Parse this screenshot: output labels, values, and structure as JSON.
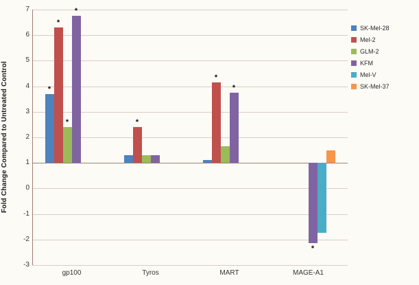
{
  "chart_data": {
    "type": "bar",
    "title": "",
    "xlabel": "",
    "ylabel": "Fold Change Compared to Untreated Control",
    "ylim": [
      -3,
      7
    ],
    "yticks": [
      7,
      6,
      5,
      4,
      3,
      2,
      1,
      0,
      -1,
      -2,
      -3
    ],
    "baseline": 1,
    "grid": true,
    "legend_position": "right",
    "star_symbol": "*",
    "categories": [
      "gp100",
      "Tyros",
      "MART",
      "MAGE-A1"
    ],
    "series": [
      {
        "name": "SK-Mel-28",
        "color": "#4F81BD",
        "values": [
          3.7,
          1.3,
          1.1,
          null
        ],
        "significant": [
          true,
          false,
          false,
          false
        ]
      },
      {
        "name": "Mel-2",
        "color": "#C0504D",
        "values": [
          6.3,
          2.4,
          4.15,
          null
        ],
        "significant": [
          true,
          true,
          true,
          false
        ]
      },
      {
        "name": "GLM-2",
        "color": "#9BBB59",
        "values": [
          2.4,
          1.3,
          1.65,
          null
        ],
        "significant": [
          true,
          false,
          false,
          false
        ]
      },
      {
        "name": "KFM",
        "color": "#8064A2",
        "values": [
          6.75,
          1.3,
          3.75,
          -2.15
        ],
        "significant": [
          true,
          false,
          true,
          true
        ]
      },
      {
        "name": "Mel-V",
        "color": "#4BACC6",
        "values": [
          null,
          null,
          null,
          -1.75
        ],
        "significant": [
          false,
          false,
          false,
          false
        ]
      },
      {
        "name": "SK-Mel-37",
        "color": "#F79646",
        "values": [
          null,
          null,
          null,
          1.5
        ],
        "significant": [
          false,
          false,
          false,
          false
        ]
      }
    ]
  },
  "colors": {
    "background": "#fcfbf6",
    "gridline": "#ddcbc5",
    "axis_line": "#9e8078",
    "text": "#333333"
  }
}
